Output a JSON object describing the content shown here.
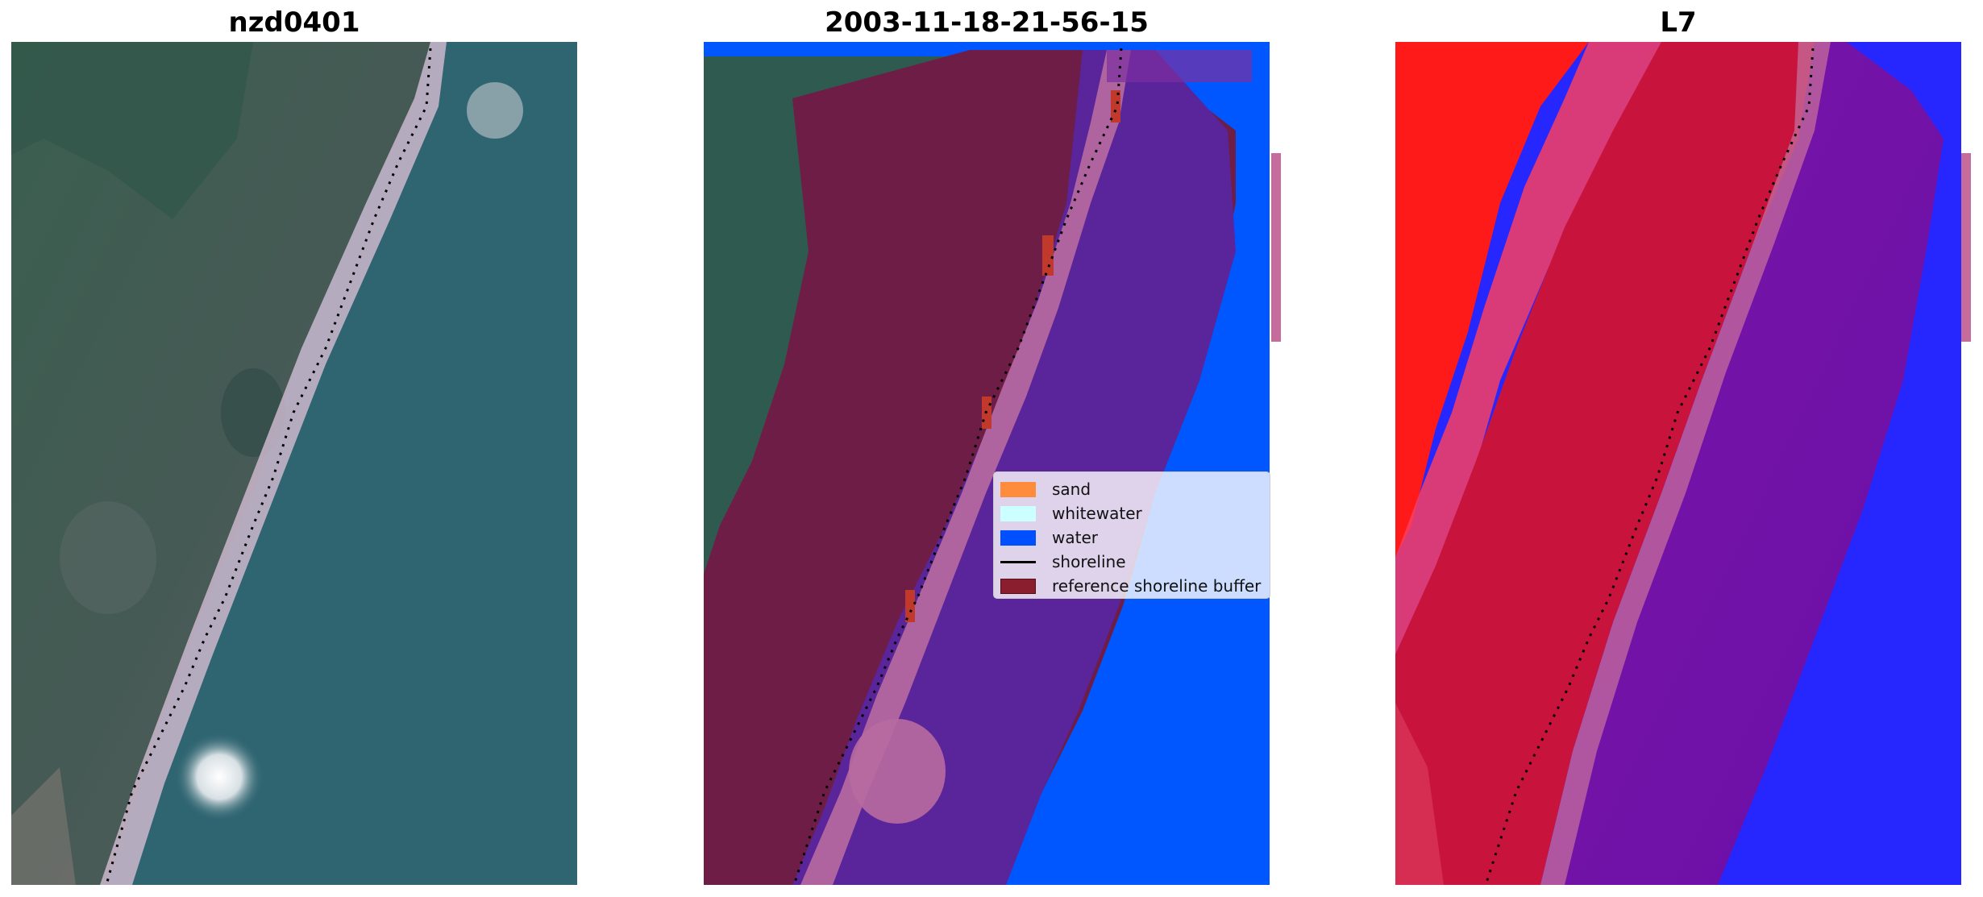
{
  "panels": [
    {
      "title": "nzd0401"
    },
    {
      "title": "2003-11-18-21-56-15"
    },
    {
      "title": "L7"
    }
  ],
  "legend": {
    "items": [
      {
        "label": "sand",
        "color": "#ff8c3c",
        "kind": "patch"
      },
      {
        "label": "whitewater",
        "color": "#ccffff",
        "kind": "patch"
      },
      {
        "label": "water",
        "color": "#0050ff",
        "kind": "patch"
      },
      {
        "label": "shoreline",
        "color": "#000000",
        "kind": "line"
      },
      {
        "label": "reference shoreline buffer",
        "color": "#8b1e2e",
        "kind": "patch"
      }
    ]
  },
  "colors": {
    "land": "#3d5a50",
    "ocean": "#2e6470",
    "beach": "#c9b3c8",
    "buffer": "#6e1e46",
    "buffer_water": "#5a249a",
    "water_class": "#0057ff",
    "index_red": "#ff1414",
    "index_crimson": "#c8143c",
    "index_purple": "#7010a8",
    "index_blue": "#2222ff"
  }
}
